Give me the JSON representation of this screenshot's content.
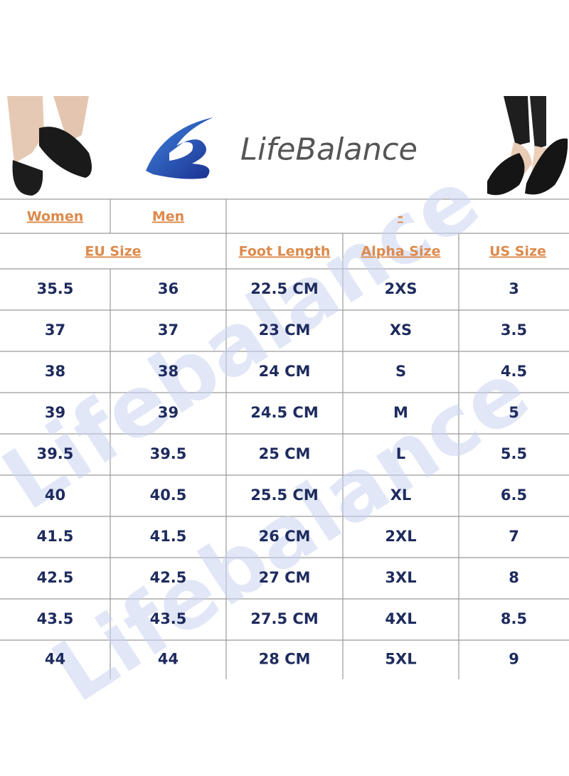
{
  "header": {
    "brand": "LifeBalance"
  },
  "watermark": [
    "Lifebalance",
    "Lifebalance"
  ],
  "table": {
    "header_row_1": [
      "Women",
      "Men",
      "-"
    ],
    "header_row_2": [
      "EU Size",
      "Foot Length",
      "Alpha Size",
      "US Size"
    ],
    "rows": [
      [
        "35.5",
        "36",
        "22.5 CM",
        "2XS",
        "3"
      ],
      [
        "37",
        "37",
        "23 CM",
        "XS",
        "3.5"
      ],
      [
        "38",
        "38",
        "24 CM",
        "S",
        "4.5"
      ],
      [
        "39",
        "39",
        "24.5 CM",
        "M",
        "5"
      ],
      [
        "39.5",
        "39.5",
        "25 CM",
        "L",
        "5.5"
      ],
      [
        "40",
        "40.5",
        "25.5 CM",
        "XL",
        "6.5"
      ],
      [
        "41.5",
        "41.5",
        "26 CM",
        "2XL",
        "7"
      ],
      [
        "42.5",
        "42.5",
        "27 CM",
        "3XL",
        "8"
      ],
      [
        "43.5",
        "43.5",
        "27.5 CM",
        "4XL",
        "8.5"
      ],
      [
        "44",
        "44",
        "28 CM",
        "5XL",
        "9"
      ]
    ]
  }
}
